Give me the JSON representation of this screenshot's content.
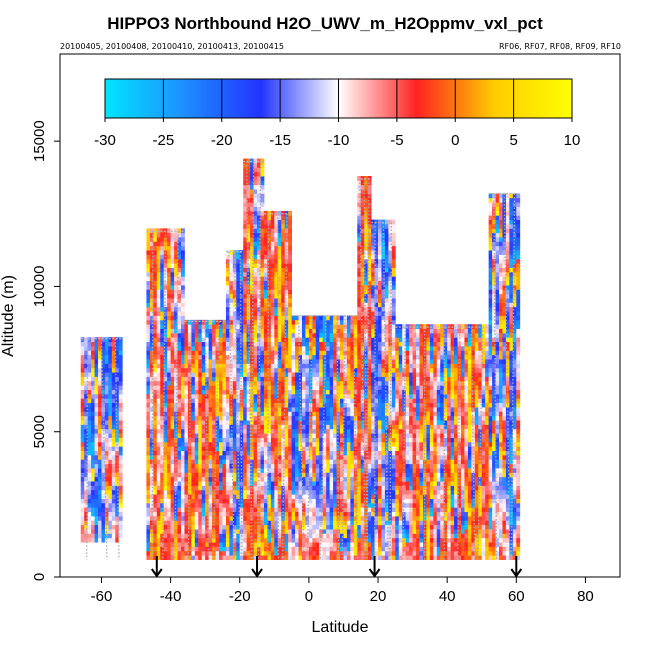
{
  "chart_data": {
    "type": "heatmap",
    "title": "HIPPO3 Northbound H2O_UWV_m_H2Oppmv_vxl_pct",
    "subtitle_left": "20100405, 20100408, 20100410, 20100413, 20100415",
    "subtitle_right": "RF06, RF07, RF08, RF09, RF10",
    "xlabel": "Latitude",
    "ylabel": "Altitude (m)",
    "xlim": [
      -72,
      90
    ],
    "ylim": [
      0,
      18000
    ],
    "x_ticks": [
      -60,
      -40,
      -20,
      0,
      20,
      40,
      60,
      80
    ],
    "y_ticks": [
      0,
      5000,
      10000,
      15000
    ],
    "colorbar": {
      "min": -30,
      "max": 10,
      "ticks": [
        -30,
        -25,
        -20,
        -15,
        -10,
        -5,
        0,
        5,
        10
      ],
      "colors": [
        "#00e5ff",
        "#1e90ff",
        "#2233ff",
        "#ffffff",
        "#ff2222",
        "#ffcc00",
        "#ffff00"
      ]
    },
    "profile_markers_latitude": [
      -44,
      -15,
      19,
      60
    ],
    "columns": [
      {
        "lat_min": -66,
        "lat_max": -54,
        "alt_top": 8200
      },
      {
        "lat_min": -47,
        "lat_max": -36,
        "alt_top": 11900
      },
      {
        "lat_min": -36,
        "lat_max": -24,
        "alt_top": 8800
      },
      {
        "lat_min": -24,
        "lat_max": -19,
        "alt_top": 11200
      },
      {
        "lat_min": -19,
        "lat_max": -13,
        "alt_top": 14300
      },
      {
        "lat_min": -13,
        "lat_max": -5,
        "alt_top": 12500
      },
      {
        "lat_min": -5,
        "lat_max": 7,
        "alt_top": 9000
      },
      {
        "lat_min": 7,
        "lat_max": 14,
        "alt_top": 9000
      },
      {
        "lat_min": 14,
        "lat_max": 18,
        "alt_top": 13700
      },
      {
        "lat_min": 18,
        "lat_max": 25,
        "alt_top": 12200
      },
      {
        "lat_min": 25,
        "lat_max": 42,
        "alt_top": 8600
      },
      {
        "lat_min": 42,
        "lat_max": 52,
        "alt_top": 8600
      },
      {
        "lat_min": 52,
        "lat_max": 61,
        "alt_top": 13200
      }
    ]
  }
}
